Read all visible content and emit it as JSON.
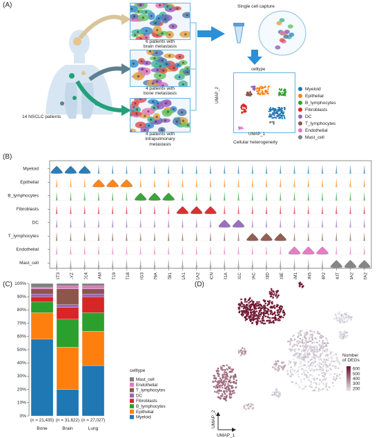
{
  "panels": {
    "a": "(A)",
    "b": "(B)",
    "c": "(C)",
    "d": "(D)"
  },
  "panel_a": {
    "patients_label": "14 NSCLC patients",
    "group_brain": "6 patients with\nbrain metastasis",
    "group_bone": "4 patients with\nbone metastasis",
    "group_lung": "4 patients with\nintrapulmonary\nmetastasis",
    "capture_label": "Single cell capture",
    "umap_title": "celltype",
    "umap_x": "UMAP_1",
    "umap_y": "UMAP_2",
    "umap_caption": "Cellular heterogeneity",
    "legend": [
      {
        "name": "Myeloid",
        "color": "#1f77b4"
      },
      {
        "name": "Epithelial",
        "color": "#ff7f0e"
      },
      {
        "name": "B_lymphocytes",
        "color": "#2ca02c"
      },
      {
        "name": "Fibroblasts",
        "color": "#d62728"
      },
      {
        "name": "DC",
        "color": "#9467bd"
      },
      {
        "name": "T_lymphocytes",
        "color": "#8c564b"
      },
      {
        "name": "Endothelial",
        "color": "#e377c2"
      },
      {
        "name": "Mast_cell",
        "color": "#7f7f7f"
      }
    ],
    "colors": {
      "brain_arrow": "#d9c59a",
      "bone_arrow": "#5e7f8f",
      "lung_arrow": "#22a07a",
      "flow_arrow": "#2d8fd5",
      "box_border": "#5db4e0"
    }
  },
  "panel_b": {
    "rows": [
      "Myeloid",
      "Epithelial",
      "B_lymphocytes",
      "Fibroblasts",
      "DC",
      "T_lymphocytes",
      "Endothelial",
      "Mast_cell"
    ],
    "row_colors": [
      "#1f77b4",
      "#ff7f0e",
      "#2ca02c",
      "#d62728",
      "#9467bd",
      "#8c564b",
      "#e377c2",
      "#7f7f7f"
    ],
    "genes": [
      "CST3",
      "LYZ",
      "CD14",
      "EPCAM",
      "KRT19",
      "KRT18",
      "IGHG3",
      "CD79A",
      "MZB1",
      "COL1A1",
      "COL1A2",
      "DCN",
      "FCER1A",
      "CD1C",
      "TRAC",
      "CD3D",
      "CD3E",
      "PECAM1",
      "CLDN5",
      "RAMP2",
      "KIT",
      "MS4A2",
      "GATA2"
    ],
    "markers": {
      "Myeloid": [
        0,
        1,
        2
      ],
      "Epithelial": [
        3,
        4,
        5
      ],
      "B_lymphocytes": [
        6,
        7,
        8
      ],
      "Fibroblasts": [
        9,
        10,
        11
      ],
      "DC": [
        12,
        13
      ],
      "T_lymphocytes": [
        14,
        15,
        16
      ],
      "Endothelial": [
        17,
        18,
        19
      ],
      "Mast_cell": [
        20,
        21,
        22
      ]
    }
  },
  "chart_data": [
    {
      "type": "bar",
      "stacked": true,
      "categories": [
        "Bone",
        "Brain",
        "Lung"
      ],
      "category_counts": [
        "(n = 21,435)",
        "(n = 31,622)",
        "(n = 27,027)"
      ],
      "ylabel": "",
      "ylim": [
        0,
        100
      ],
      "yticks": [
        "0%",
        "10%",
        "20%",
        "30%",
        "40%",
        "50%",
        "60%",
        "70%",
        "80%",
        "90%",
        "100%"
      ],
      "legend_title": "celltype",
      "series": [
        {
          "name": "Myeloid",
          "color": "#1f77b4",
          "values": [
            58,
            20,
            38
          ]
        },
        {
          "name": "Epithelial",
          "color": "#ff7f0e",
          "values": [
            20,
            32,
            26
          ]
        },
        {
          "name": "B_lymphocytes",
          "color": "#2ca02c",
          "values": [
            8,
            21,
            14
          ]
        },
        {
          "name": "Fibroblasts",
          "color": "#d62728",
          "values": [
            4,
            9,
            12
          ]
        },
        {
          "name": "DC",
          "color": "#9467bd",
          "values": [
            2,
            2,
            2
          ]
        },
        {
          "name": "T_lymphocytes",
          "color": "#8c564b",
          "values": [
            4,
            12,
            4
          ]
        },
        {
          "name": "Endothelial",
          "color": "#e377c2",
          "values": [
            1,
            2,
            2
          ]
        },
        {
          "name": "Mast_cell",
          "color": "#7f7f7f",
          "values": [
            3,
            2,
            2
          ]
        }
      ],
      "legend_order": [
        "Mast_cell",
        "Endothelial",
        "T_lymphocytes",
        "DC",
        "Fibroblasts",
        "B_lymphocytes",
        "Epithelial",
        "Myeloid"
      ]
    },
    {
      "type": "scatter",
      "xlabel": "UMAP_1",
      "ylabel": "UMAP_2",
      "colorbar_title": "Number\nof DEGs",
      "colorbar_ticks": [
        "600",
        "500",
        "400",
        "300",
        "200"
      ],
      "colorbar_range": [
        150,
        650
      ],
      "colors": {
        "high": "#6b0f2a",
        "low": "#e4e8ef"
      }
    }
  ]
}
